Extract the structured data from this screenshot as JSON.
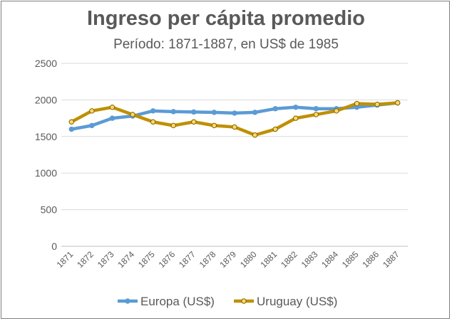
{
  "chart_data": {
    "type": "line",
    "title": "Ingreso per cápita promedio",
    "subtitle": "Período: 1871-1887, en US$ de 1985",
    "xlabel": "",
    "ylabel": "",
    "ylim": [
      0,
      2500
    ],
    "yticks": [
      0,
      500,
      1000,
      1500,
      2000,
      2500
    ],
    "grid": true,
    "legend_position": "bottom",
    "categories": [
      "1871",
      "1872",
      "1873",
      "1874",
      "1875",
      "1876",
      "1877",
      "1878",
      "1879",
      "1880",
      "1881",
      "1882",
      "1883",
      "1884",
      "1885",
      "1886",
      "1887"
    ],
    "series": [
      {
        "name": "Europa (US$)",
        "color": "#5b9bd5",
        "marker": "circle-filled",
        "values": [
          1600,
          1650,
          1750,
          1780,
          1850,
          1840,
          1835,
          1830,
          1820,
          1830,
          1880,
          1900,
          1880,
          1880,
          1900,
          1930,
          1960
        ]
      },
      {
        "name": "Uruguay (US$)",
        "color": "#bf9000",
        "marker_fill": "#ffd966",
        "marker": "circle-hollow",
        "values": [
          1700,
          1850,
          1900,
          1800,
          1700,
          1650,
          1700,
          1650,
          1630,
          1520,
          1600,
          1750,
          1800,
          1850,
          1950,
          1940,
          1960
        ]
      }
    ]
  }
}
